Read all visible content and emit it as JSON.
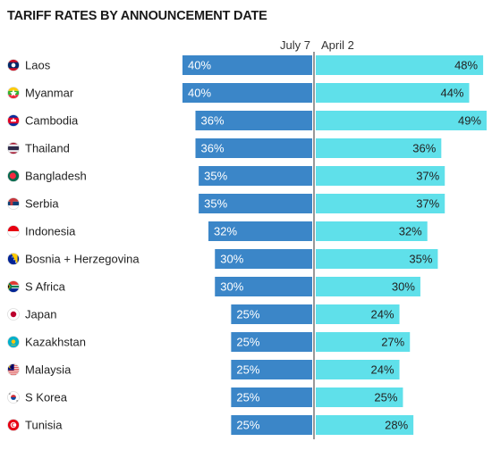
{
  "title": "TARIFF RATES BY ANNOUNCEMENT DATE",
  "colors": {
    "july_bar": "#3b86c8",
    "april_bar": "#5fe0ea",
    "july_label": "#ffffff",
    "april_label": "#222222"
  },
  "chart_data": {
    "type": "bar",
    "title": "TARIFF RATES BY ANNOUNCEMENT DATE",
    "orientation": "horizontal-diverging",
    "xlim": [
      0,
      50
    ],
    "categories": [
      "Laos",
      "Myanmar",
      "Cambodia",
      "Thailand",
      "Bangladesh",
      "Serbia",
      "Indonesia",
      "Bosnia + Herzegovina",
      "S Africa",
      "Japan",
      "Kazakhstan",
      "Malaysia",
      "S Korea",
      "Tunisia"
    ],
    "series": [
      {
        "name": "July 7",
        "values": [
          40,
          40,
          36,
          36,
          35,
          35,
          32,
          30,
          30,
          25,
          25,
          25,
          25,
          25
        ],
        "labels": [
          "40%",
          "40%",
          "36%",
          "36%",
          "35%",
          "35%",
          "32%",
          "30%",
          "30%",
          "25%",
          "25%",
          "25%",
          "25%",
          "25%"
        ]
      },
      {
        "name": "April 2",
        "values": [
          48,
          44,
          49,
          36,
          37,
          37,
          32,
          35,
          30,
          24,
          27,
          24,
          25,
          28
        ],
        "labels": [
          "48%",
          "44%",
          "49%",
          "36%",
          "37%",
          "37%",
          "32%",
          "35%",
          "30%",
          "24%",
          "27%",
          "24%",
          "25%",
          "28%"
        ]
      }
    ],
    "flags": [
      "laos-flag-icon",
      "myanmar-flag-icon",
      "cambodia-flag-icon",
      "thailand-flag-icon",
      "bangladesh-flag-icon",
      "serbia-flag-icon",
      "indonesia-flag-icon",
      "bosnia-flag-icon",
      "south-africa-flag-icon",
      "japan-flag-icon",
      "kazakhstan-flag-icon",
      "malaysia-flag-icon",
      "south-korea-flag-icon",
      "tunisia-flag-icon"
    ]
  }
}
